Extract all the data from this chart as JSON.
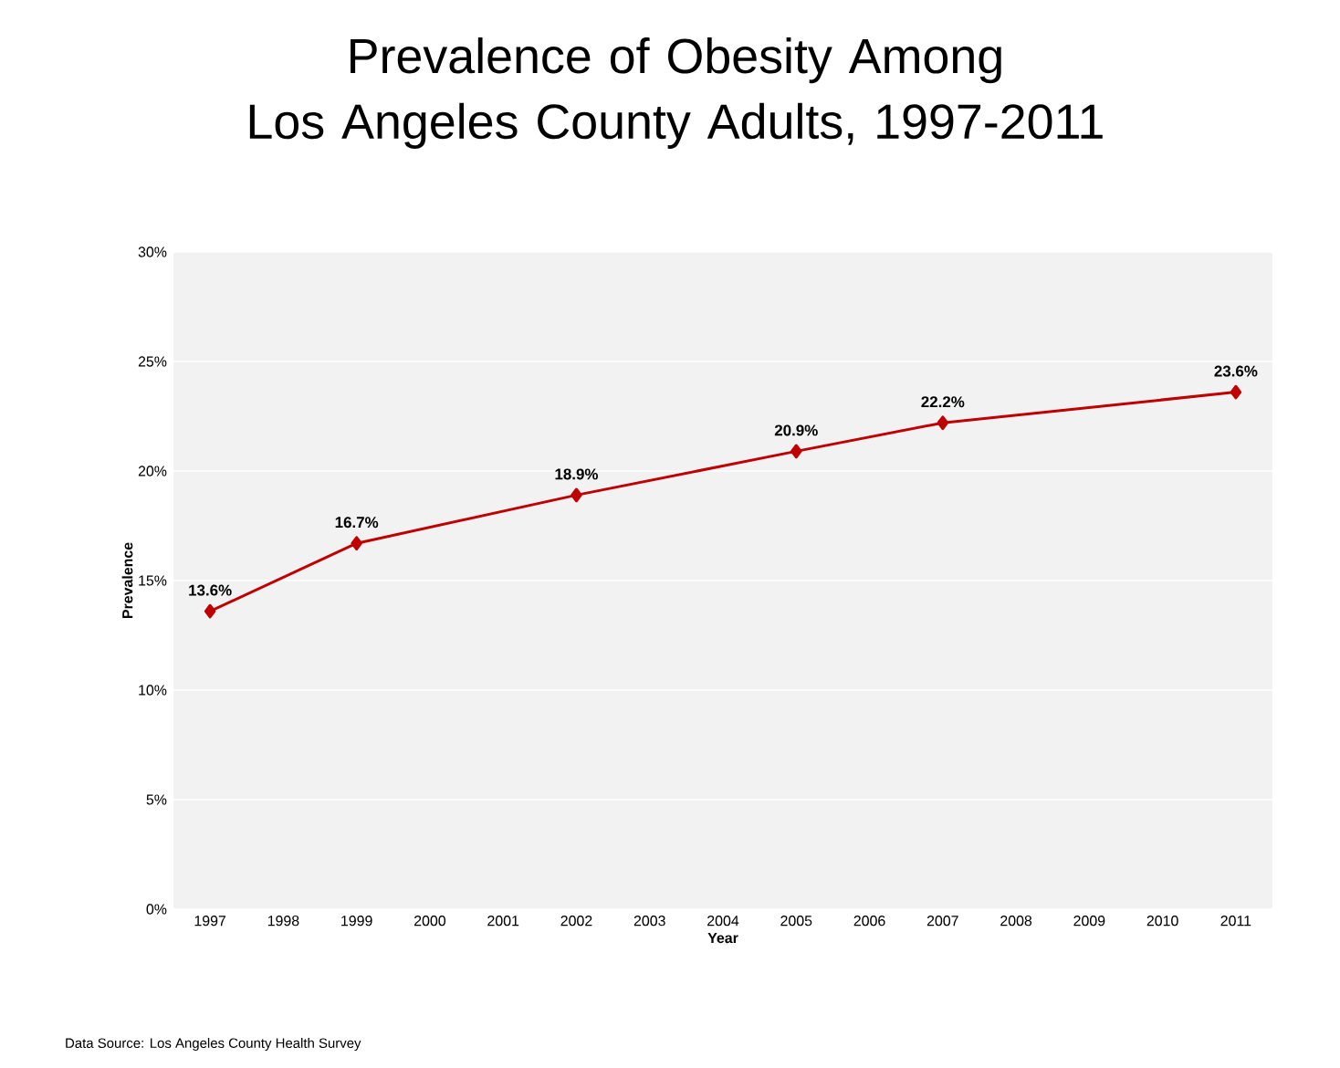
{
  "chart_data": {
    "type": "line",
    "title": "Prevalence of Obesity Among\nLos Angeles County Adults, 1997-2011",
    "xlabel": "Year",
    "ylabel": "Prevalence",
    "x": [
      1997,
      1999,
      2002,
      2005,
      2007,
      2011
    ],
    "series": [
      {
        "color": "#c00000",
        "values": [
          13.6,
          16.7,
          18.9,
          20.9,
          22.2,
          23.6
        ]
      }
    ],
    "value_labels": [
      "13.6%",
      "16.7%",
      "18.9%",
      "20.9%",
      "22.2%",
      "23.6%"
    ],
    "xlim": [
      1996.5,
      2011.5
    ],
    "xticks": [
      1997,
      1998,
      1999,
      2000,
      2001,
      2002,
      2003,
      2004,
      2005,
      2006,
      2007,
      2008,
      2009,
      2010,
      2011
    ],
    "ylim": [
      0,
      30
    ],
    "yticks": [
      {
        "value": 0,
        "label": "0%"
      },
      {
        "value": 5,
        "label": "5%"
      },
      {
        "value": 10,
        "label": "10%"
      },
      {
        "value": 15,
        "label": "15%"
      },
      {
        "value": 20,
        "label": "20%"
      },
      {
        "value": 25,
        "label": "25%"
      },
      {
        "value": 30,
        "label": "30%"
      }
    ],
    "grid": "y",
    "marker": "diamond",
    "line_style": "solid",
    "annotations": [
      "Data Source: Los Angeles County Health Survey"
    ]
  }
}
